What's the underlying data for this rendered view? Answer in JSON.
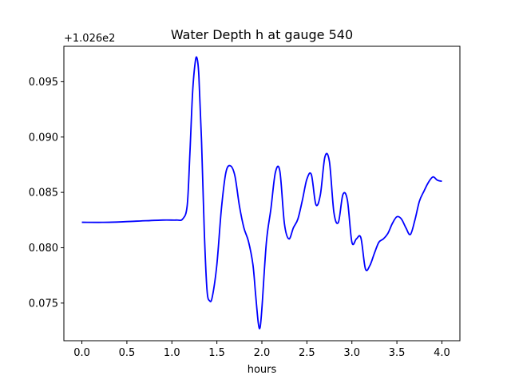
{
  "chart_data": {
    "type": "line",
    "title": "Water Depth h at gauge 540",
    "xlabel": "hours",
    "ylabel": "",
    "y_offset_text": "+1.026e2",
    "xlim": [
      -0.2,
      4.2
    ],
    "ylim": [
      0.0716,
      0.0982
    ],
    "x_ticks": [
      0.0,
      0.5,
      1.0,
      1.5,
      2.0,
      2.5,
      3.0,
      3.5,
      4.0
    ],
    "x_tick_labels": [
      "0.0",
      "0.5",
      "1.0",
      "1.5",
      "2.0",
      "2.5",
      "3.0",
      "3.5",
      "4.0"
    ],
    "y_ticks": [
      0.075,
      0.08,
      0.085,
      0.09,
      0.095
    ],
    "y_tick_labels": [
      "0.075",
      "0.080",
      "0.085",
      "0.090",
      "0.095"
    ],
    "grid": false,
    "line_color": "#0000ff",
    "series": [
      {
        "x": [
          0.0,
          0.3,
          0.6,
          0.9,
          1.05,
          1.12,
          1.17,
          1.2,
          1.23,
          1.26,
          1.28,
          1.3,
          1.33,
          1.36,
          1.39,
          1.42,
          1.45,
          1.5,
          1.55,
          1.6,
          1.65,
          1.7,
          1.75,
          1.8,
          1.85,
          1.9,
          1.93,
          1.96,
          1.98,
          2.0,
          2.05,
          2.1,
          2.15,
          2.2,
          2.25,
          2.3,
          2.35,
          2.4,
          2.45,
          2.5,
          2.55,
          2.6,
          2.65,
          2.7,
          2.75,
          2.8,
          2.85,
          2.9,
          2.95,
          3.0,
          3.05,
          3.1,
          3.15,
          3.2,
          3.25,
          3.3,
          3.35,
          3.4,
          3.45,
          3.5,
          3.55,
          3.6,
          3.65,
          3.7,
          3.75,
          3.8,
          3.85,
          3.9,
          3.95,
          4.0
        ],
        "y": [
          0.0823,
          0.0823,
          0.0824,
          0.0825,
          0.0825,
          0.0826,
          0.0838,
          0.0885,
          0.094,
          0.0968,
          0.0971,
          0.0955,
          0.0895,
          0.0815,
          0.0762,
          0.0752,
          0.0756,
          0.0785,
          0.0835,
          0.0868,
          0.0874,
          0.0865,
          0.0838,
          0.0818,
          0.0806,
          0.0785,
          0.0758,
          0.0732,
          0.0728,
          0.0745,
          0.0805,
          0.0835,
          0.0868,
          0.0869,
          0.0822,
          0.0808,
          0.0818,
          0.0826,
          0.0843,
          0.0862,
          0.0866,
          0.0839,
          0.0848,
          0.0882,
          0.0878,
          0.0832,
          0.0823,
          0.0848,
          0.0843,
          0.0805,
          0.0808,
          0.0809,
          0.0781,
          0.0784,
          0.0795,
          0.0805,
          0.0808,
          0.0813,
          0.0822,
          0.0828,
          0.0826,
          0.0818,
          0.0812,
          0.0825,
          0.0842,
          0.0851,
          0.0859,
          0.0864,
          0.0861,
          0.086
        ]
      }
    ]
  }
}
